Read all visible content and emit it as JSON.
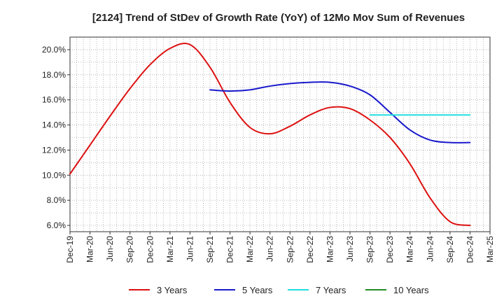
{
  "chart_data": {
    "type": "line",
    "title": "[2124]  Trend of StDev of Growth Rate (YoY) of 12Mo Mov Sum of Revenues",
    "xlabel": "",
    "ylabel": "",
    "ylim": [
      5.5,
      21.0
    ],
    "yticks": [
      6.0,
      8.0,
      10.0,
      12.0,
      14.0,
      16.0,
      18.0,
      20.0
    ],
    "ytick_labels": [
      "6.0%",
      "8.0%",
      "10.0%",
      "12.0%",
      "14.0%",
      "16.0%",
      "18.0%",
      "20.0%"
    ],
    "categories": [
      "Dec-19",
      "Mar-20",
      "Jun-20",
      "Sep-20",
      "Dec-20",
      "Mar-21",
      "Jun-21",
      "Sep-21",
      "Dec-21",
      "Mar-22",
      "Jun-22",
      "Sep-22",
      "Dec-22",
      "Mar-23",
      "Jun-23",
      "Sep-23",
      "Dec-23",
      "Mar-24",
      "Jun-24",
      "Sep-24",
      "Dec-24",
      "Mar-25"
    ],
    "grid": true,
    "legend_position": "bottom",
    "series": [
      {
        "name": "3 Years",
        "color": "#dd1111",
        "values": [
          10.1,
          12.4,
          14.7,
          16.9,
          18.8,
          20.1,
          20.4,
          18.6,
          15.8,
          13.8,
          13.3,
          13.9,
          14.8,
          15.4,
          15.3,
          14.4,
          13.0,
          10.9,
          8.2,
          6.3,
          6.0,
          null
        ]
      },
      {
        "name": "5 Years",
        "color": "#1a1acc",
        "values": [
          null,
          null,
          null,
          null,
          null,
          null,
          null,
          16.8,
          16.7,
          16.8,
          17.1,
          17.3,
          17.4,
          17.4,
          17.1,
          16.4,
          15.0,
          13.6,
          12.8,
          12.6,
          12.6,
          null
        ]
      },
      {
        "name": "7 Years",
        "color": "#22dddd",
        "values": [
          null,
          null,
          null,
          null,
          null,
          null,
          null,
          null,
          null,
          null,
          null,
          null,
          null,
          null,
          null,
          14.8,
          14.8,
          14.8,
          14.8,
          14.8,
          14.8,
          null
        ]
      },
      {
        "name": "10 Years",
        "color": "#228b22",
        "values": [
          null,
          null,
          null,
          null,
          null,
          null,
          null,
          null,
          null,
          null,
          null,
          null,
          null,
          null,
          null,
          null,
          null,
          null,
          null,
          null,
          null,
          null
        ]
      }
    ]
  }
}
